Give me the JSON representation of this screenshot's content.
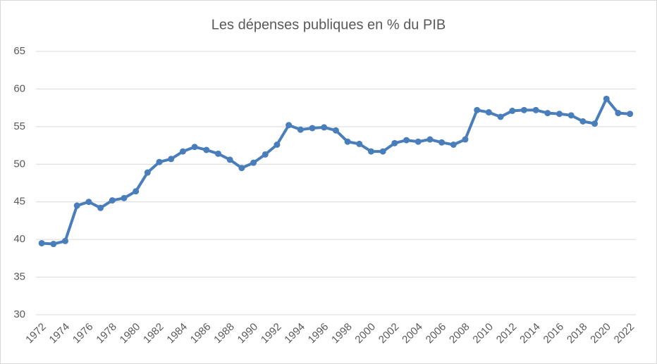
{
  "chart_data": {
    "type": "line",
    "title": "Les dépenses publiques  en % du PIB",
    "categories": [
      "1972",
      null,
      "1974",
      null,
      "1976",
      null,
      "1978",
      null,
      "1980",
      null,
      "1982",
      null,
      "1984",
      null,
      "1986",
      null,
      "1988",
      null,
      "1990",
      null,
      "1992",
      null,
      "1994",
      null,
      "1996",
      null,
      "1998",
      null,
      "2000",
      null,
      "2002",
      null,
      "2004",
      null,
      "2006",
      null,
      "2008",
      null,
      "2010",
      null,
      "2012",
      null,
      "2014",
      null,
      "2016",
      null,
      "2018",
      null,
      "2020",
      null,
      "2022"
    ],
    "series": [
      {
        "color": "#4a7ebb",
        "values": [
          39.5,
          39.4,
          39.8,
          44.5,
          45.0,
          44.2,
          45.2,
          45.5,
          46.4,
          48.9,
          50.3,
          50.7,
          51.7,
          52.3,
          51.9,
          51.4,
          50.6,
          49.5,
          50.2,
          51.3,
          52.6,
          55.2,
          54.6,
          54.8,
          54.9,
          54.5,
          53.0,
          52.7,
          51.7,
          51.7,
          52.8,
          53.2,
          53.0,
          53.3,
          52.9,
          52.6,
          53.3,
          57.2,
          56.9,
          56.3,
          57.1,
          57.2,
          57.2,
          56.8,
          56.7,
          56.5,
          55.7,
          55.4,
          58.7,
          56.8,
          56.7
        ]
      }
    ],
    "ylim": [
      30,
      65
    ],
    "yticks": [
      30,
      35,
      40,
      45,
      50,
      55,
      60,
      65
    ],
    "grid": true
  }
}
